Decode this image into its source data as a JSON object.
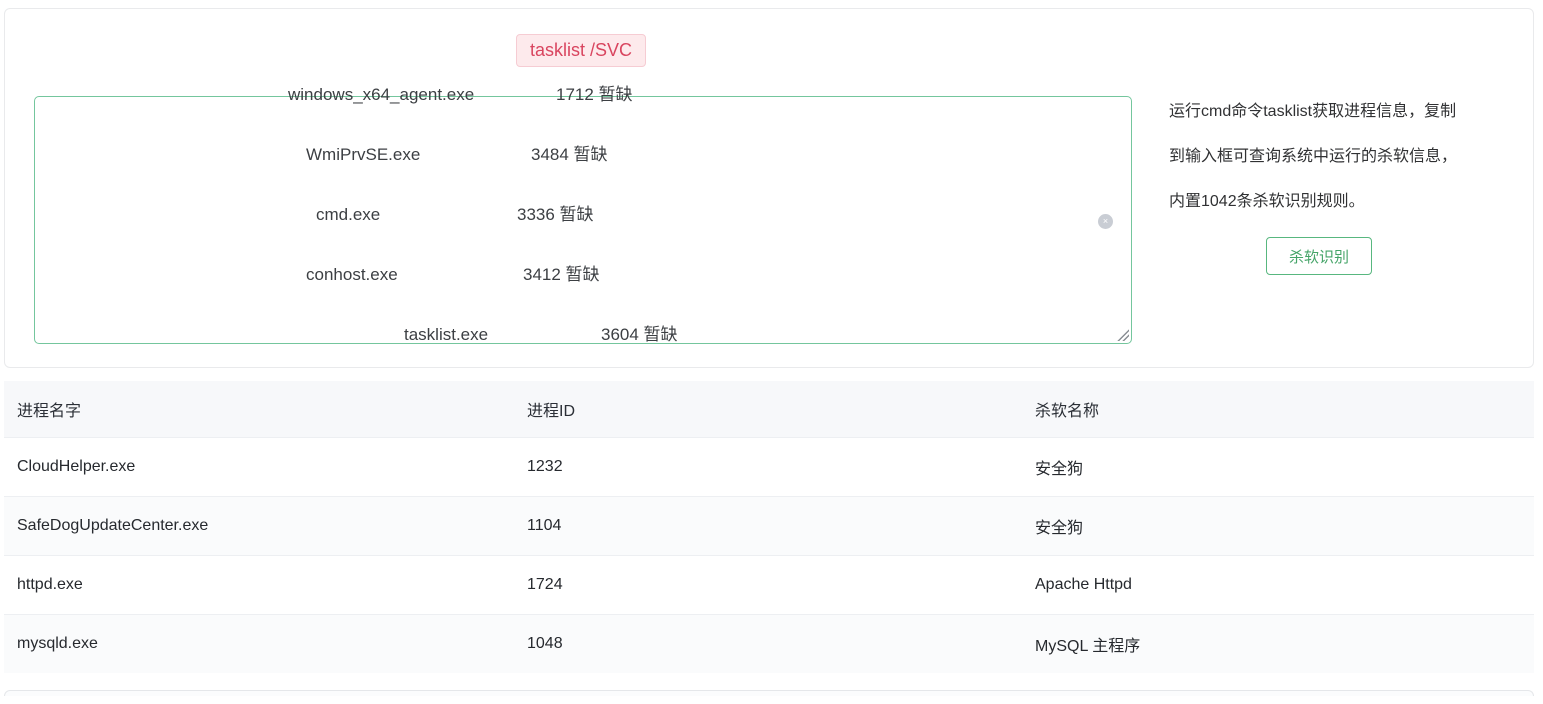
{
  "command_tag": {
    "label": "tasklist /SVC"
  },
  "input_panel": {
    "lines": [
      {
        "name": "windows_x64_agent.exe",
        "pid_info": "1712 暂缺"
      },
      {
        "name": "WmiPrvSE.exe",
        "pid_info": "3484 暂缺"
      },
      {
        "name": "cmd.exe",
        "pid_info": "3336 暂缺"
      },
      {
        "name": "conhost.exe",
        "pid_info": "3412 暂缺"
      },
      {
        "name": "tasklist.exe",
        "pid_info": "3604 暂缺"
      }
    ],
    "clear_icon": "×"
  },
  "info": {
    "description_lines": [
      "运行cmd命令tasklist获取进程信息，复制",
      "到输入框可查询系统中运行的杀软信息，",
      "内置1042条杀软识别规则。"
    ],
    "button_label": "杀软识别"
  },
  "table": {
    "headers": [
      "进程名字",
      "进程ID",
      "杀软名称"
    ],
    "rows": [
      {
        "process": "CloudHelper.exe",
        "pid": "1232",
        "av": "安全狗"
      },
      {
        "process": "SafeDogUpdateCenter.exe",
        "pid": "1104",
        "av": "安全狗"
      },
      {
        "process": "httpd.exe",
        "pid": "1724",
        "av": "Apache Httpd"
      },
      {
        "process": "mysqld.exe",
        "pid": "1048",
        "av": "MySQL 主程序"
      }
    ]
  },
  "colors": {
    "tag_text": "#d9455f",
    "tag_bg": "#fdeaec",
    "textarea_border": "#74c69d",
    "button_green": "#45a468",
    "table_header_bg": "#f7f8fa",
    "zebra_row_bg": "#fafbfc"
  }
}
